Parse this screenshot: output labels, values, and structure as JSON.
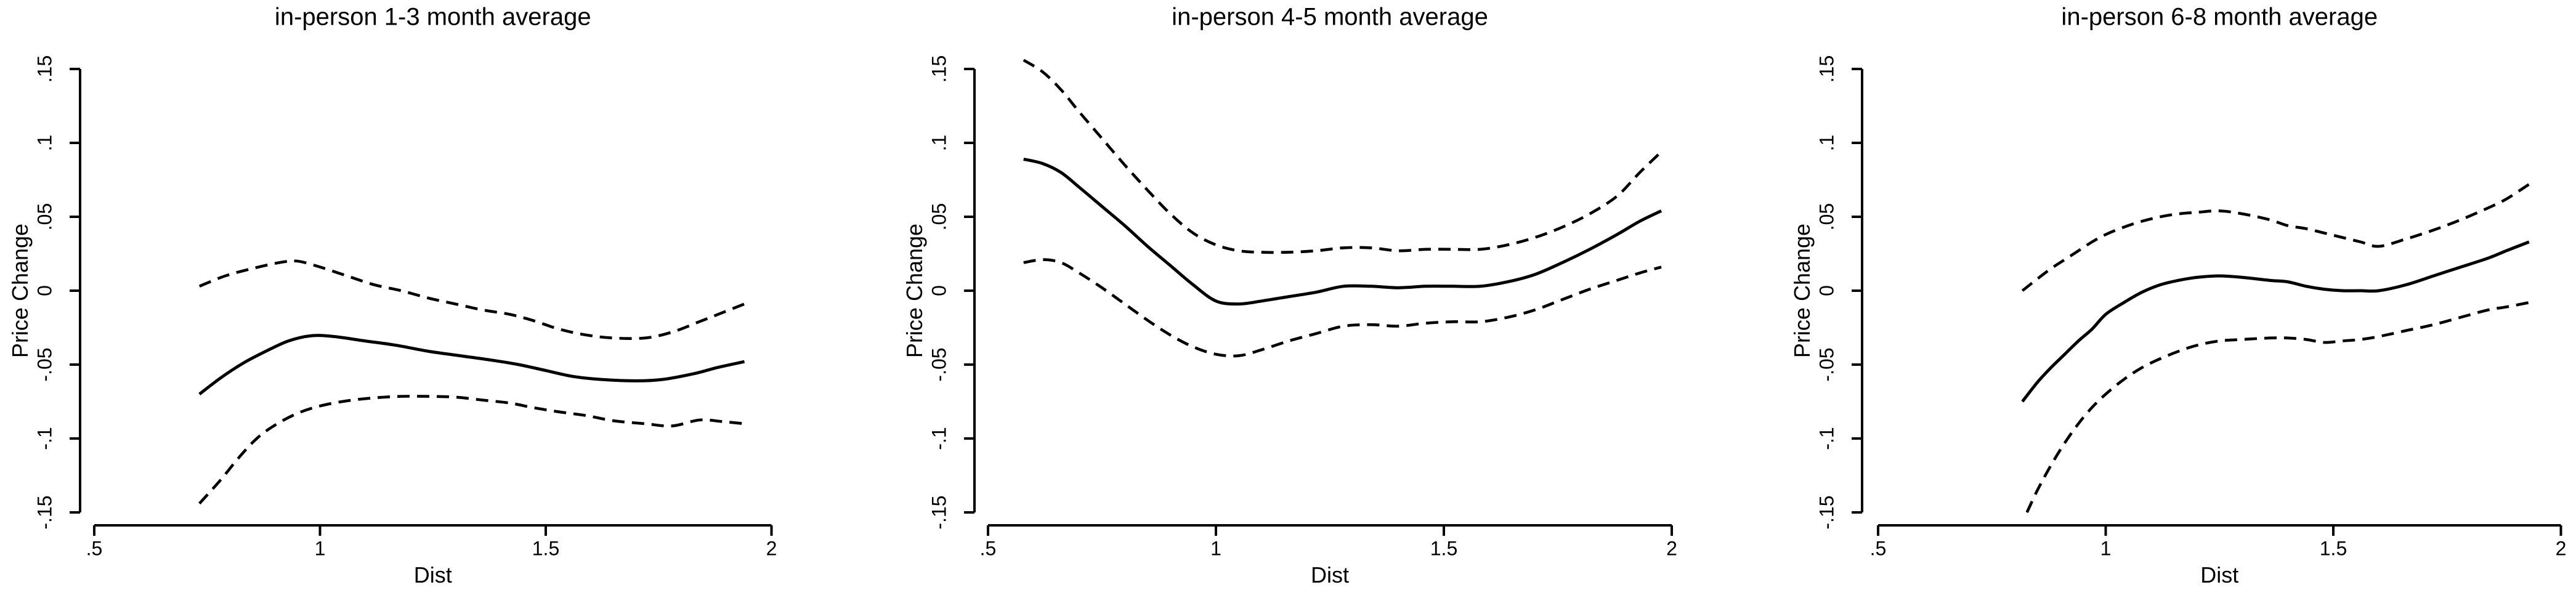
{
  "figure": {
    "background": "#ffffff",
    "line_color": "#000000"
  },
  "chart_data": [
    {
      "type": "line",
      "title": "in-person 1-3 month average",
      "xlabel": "Dist",
      "ylabel": "Price Change",
      "xlim": [
        0.5,
        2
      ],
      "ylim": [
        -0.15,
        0.15
      ],
      "x_ticks": [
        0.5,
        1,
        1.5,
        2
      ],
      "x_tick_labels": [
        ".5",
        "1",
        "1.5",
        "2"
      ],
      "y_ticks": [
        0.15,
        0.1,
        0.05,
        0,
        -0.05,
        -0.1,
        -0.15
      ],
      "y_tick_labels": [
        ".15",
        ".1",
        ".05",
        "0",
        "-.05",
        "-.1",
        "-.15"
      ],
      "grid": false,
      "legend": "none",
      "series": [
        {
          "name": "estimate",
          "style": "solid",
          "points": [
            [
              0.733,
              -0.07
            ],
            [
              0.78,
              -0.059
            ],
            [
              0.83,
              -0.049
            ],
            [
              0.88,
              -0.041
            ],
            [
              0.93,
              -0.034
            ],
            [
              0.98,
              -0.0305
            ],
            [
              1.03,
              -0.031
            ],
            [
              1.1,
              -0.034
            ],
            [
              1.17,
              -0.037
            ],
            [
              1.24,
              -0.041
            ],
            [
              1.31,
              -0.044
            ],
            [
              1.38,
              -0.047
            ],
            [
              1.44,
              -0.05
            ],
            [
              1.5,
              -0.054
            ],
            [
              1.56,
              -0.058
            ],
            [
              1.62,
              -0.06
            ],
            [
              1.7,
              -0.061
            ],
            [
              1.76,
              -0.06
            ],
            [
              1.83,
              -0.056
            ],
            [
              1.88,
              -0.052
            ],
            [
              1.94,
              -0.048
            ]
          ]
        },
        {
          "name": "upper-band",
          "style": "dashed",
          "points": [
            [
              0.733,
              0.003
            ],
            [
              0.79,
              0.01
            ],
            [
              0.85,
              0.015
            ],
            [
              0.91,
              0.019
            ],
            [
              0.95,
              0.02
            ],
            [
              1.0,
              0.016
            ],
            [
              1.06,
              0.01
            ],
            [
              1.12,
              0.004
            ],
            [
              1.18,
              0.0
            ],
            [
              1.24,
              -0.005
            ],
            [
              1.3,
              -0.009
            ],
            [
              1.36,
              -0.013
            ],
            [
              1.42,
              -0.016
            ],
            [
              1.47,
              -0.02
            ],
            [
              1.53,
              -0.026
            ],
            [
              1.59,
              -0.03
            ],
            [
              1.65,
              -0.032
            ],
            [
              1.72,
              -0.032
            ],
            [
              1.78,
              -0.028
            ],
            [
              1.84,
              -0.021
            ],
            [
              1.89,
              -0.015
            ],
            [
              1.94,
              -0.009
            ]
          ]
        },
        {
          "name": "lower-band",
          "style": "dashed",
          "points": [
            [
              0.733,
              -0.144
            ],
            [
              0.78,
              -0.128
            ],
            [
              0.82,
              -0.113
            ],
            [
              0.86,
              -0.1
            ],
            [
              0.9,
              -0.091
            ],
            [
              0.95,
              -0.083
            ],
            [
              1.0,
              -0.078
            ],
            [
              1.06,
              -0.0745
            ],
            [
              1.12,
              -0.0725
            ],
            [
              1.18,
              -0.0715
            ],
            [
              1.24,
              -0.0715
            ],
            [
              1.3,
              -0.072
            ],
            [
              1.36,
              -0.074
            ],
            [
              1.42,
              -0.076
            ],
            [
              1.47,
              -0.079
            ],
            [
              1.53,
              -0.082
            ],
            [
              1.59,
              -0.0845
            ],
            [
              1.65,
              -0.088
            ],
            [
              1.72,
              -0.09
            ],
            [
              1.78,
              -0.0915
            ],
            [
              1.84,
              -0.0875
            ],
            [
              1.89,
              -0.0885
            ],
            [
              1.94,
              -0.09
            ]
          ]
        }
      ]
    },
    {
      "type": "line",
      "title": "in-person 4-5 month average",
      "xlabel": "Dist",
      "ylabel": "Price Change",
      "xlim": [
        0.5,
        2
      ],
      "ylim": [
        -0.15,
        0.15
      ],
      "x_ticks": [
        0.5,
        1,
        1.5,
        2
      ],
      "x_tick_labels": [
        ".5",
        "1",
        "1.5",
        "2"
      ],
      "y_ticks": [
        0.15,
        0.1,
        0.05,
        0,
        -0.05,
        -0.1,
        -0.15
      ],
      "y_tick_labels": [
        ".15",
        ".1",
        ".05",
        "0",
        "-.05",
        "-.1",
        "-.15"
      ],
      "grid": false,
      "legend": "none",
      "series": [
        {
          "name": "estimate",
          "style": "solid",
          "points": [
            [
              0.578,
              0.089
            ],
            [
              0.62,
              0.086
            ],
            [
              0.66,
              0.08
            ],
            [
              0.7,
              0.07
            ],
            [
              0.75,
              0.057
            ],
            [
              0.8,
              0.044
            ],
            [
              0.85,
              0.03
            ],
            [
              0.9,
              0.017
            ],
            [
              0.95,
              0.004
            ],
            [
              1.0,
              -0.007
            ],
            [
              1.05,
              -0.009
            ],
            [
              1.1,
              -0.007
            ],
            [
              1.16,
              -0.004
            ],
            [
              1.22,
              -0.001
            ],
            [
              1.28,
              0.003
            ],
            [
              1.34,
              0.003
            ],
            [
              1.4,
              0.002
            ],
            [
              1.46,
              0.003
            ],
            [
              1.52,
              0.003
            ],
            [
              1.58,
              0.003
            ],
            [
              1.64,
              0.006
            ],
            [
              1.7,
              0.011
            ],
            [
              1.76,
              0.019
            ],
            [
              1.82,
              0.028
            ],
            [
              1.88,
              0.038
            ],
            [
              1.93,
              0.047
            ],
            [
              1.977,
              0.054
            ]
          ]
        },
        {
          "name": "upper-band",
          "style": "dashed",
          "points": [
            [
              0.578,
              0.156
            ],
            [
              0.62,
              0.148
            ],
            [
              0.66,
              0.136
            ],
            [
              0.7,
              0.121
            ],
            [
              0.75,
              0.103
            ],
            [
              0.8,
              0.085
            ],
            [
              0.85,
              0.068
            ],
            [
              0.9,
              0.052
            ],
            [
              0.95,
              0.039
            ],
            [
              1.0,
              0.031
            ],
            [
              1.05,
              0.027
            ],
            [
              1.1,
              0.026
            ],
            [
              1.16,
              0.026
            ],
            [
              1.22,
              0.027
            ],
            [
              1.28,
              0.029
            ],
            [
              1.34,
              0.029
            ],
            [
              1.4,
              0.027
            ],
            [
              1.46,
              0.028
            ],
            [
              1.52,
              0.028
            ],
            [
              1.58,
              0.028
            ],
            [
              1.64,
              0.031
            ],
            [
              1.7,
              0.036
            ],
            [
              1.76,
              0.043
            ],
            [
              1.82,
              0.052
            ],
            [
              1.88,
              0.064
            ],
            [
              1.93,
              0.08
            ],
            [
              1.977,
              0.094
            ]
          ]
        },
        {
          "name": "lower-band",
          "style": "dashed",
          "points": [
            [
              0.578,
              0.019
            ],
            [
              0.62,
              0.021
            ],
            [
              0.66,
              0.019
            ],
            [
              0.7,
              0.012
            ],
            [
              0.75,
              0.002
            ],
            [
              0.8,
              -0.009
            ],
            [
              0.85,
              -0.02
            ],
            [
              0.9,
              -0.03
            ],
            [
              0.95,
              -0.038
            ],
            [
              1.0,
              -0.043
            ],
            [
              1.05,
              -0.044
            ],
            [
              1.1,
              -0.04
            ],
            [
              1.16,
              -0.034
            ],
            [
              1.22,
              -0.029
            ],
            [
              1.28,
              -0.024
            ],
            [
              1.34,
              -0.023
            ],
            [
              1.4,
              -0.024
            ],
            [
              1.46,
              -0.022
            ],
            [
              1.52,
              -0.021
            ],
            [
              1.58,
              -0.021
            ],
            [
              1.64,
              -0.018
            ],
            [
              1.7,
              -0.013
            ],
            [
              1.76,
              -0.006
            ],
            [
              1.82,
              0.001
            ],
            [
              1.88,
              0.007
            ],
            [
              1.93,
              0.012
            ],
            [
              1.977,
              0.016
            ]
          ]
        }
      ]
    },
    {
      "type": "line",
      "title": "in-person 6-8 month average",
      "xlabel": "Dist",
      "ylabel": "Price Change",
      "xlim": [
        0.5,
        2
      ],
      "ylim": [
        -0.15,
        0.15
      ],
      "x_ticks": [
        0.5,
        1,
        1.5,
        2
      ],
      "x_tick_labels": [
        ".5",
        "1",
        "1.5",
        "2"
      ],
      "y_ticks": [
        0.15,
        0.1,
        0.05,
        0,
        -0.05,
        -0.1,
        -0.15
      ],
      "y_tick_labels": [
        ".15",
        ".1",
        ".05",
        "0",
        "-.05",
        "-.1",
        "-.15"
      ],
      "grid": false,
      "legend": "none",
      "series": [
        {
          "name": "estimate",
          "style": "solid",
          "points": [
            [
              0.817,
              -0.075
            ],
            [
              0.85,
              -0.062
            ],
            [
              0.88,
              -0.052
            ],
            [
              0.91,
              -0.043
            ],
            [
              0.94,
              -0.034
            ],
            [
              0.97,
              -0.026
            ],
            [
              1.0,
              -0.016
            ],
            [
              1.04,
              -0.008
            ],
            [
              1.08,
              -0.001
            ],
            [
              1.12,
              0.004
            ],
            [
              1.16,
              0.007
            ],
            [
              1.2,
              0.009
            ],
            [
              1.25,
              0.01
            ],
            [
              1.3,
              0.009
            ],
            [
              1.36,
              0.007
            ],
            [
              1.4,
              0.006
            ],
            [
              1.44,
              0.003
            ],
            [
              1.48,
              0.001
            ],
            [
              1.52,
              0.0
            ],
            [
              1.56,
              0.0
            ],
            [
              1.6,
              0.0
            ],
            [
              1.66,
              0.004
            ],
            [
              1.72,
              0.01
            ],
            [
              1.78,
              0.016
            ],
            [
              1.84,
              0.022
            ],
            [
              1.88,
              0.027
            ],
            [
              1.93,
              0.033
            ]
          ]
        },
        {
          "name": "upper-band",
          "style": "dashed",
          "points": [
            [
              0.817,
              0.0
            ],
            [
              0.85,
              0.008
            ],
            [
              0.88,
              0.015
            ],
            [
              0.91,
              0.021
            ],
            [
              0.94,
              0.027
            ],
            [
              0.97,
              0.033
            ],
            [
              1.0,
              0.038
            ],
            [
              1.04,
              0.043
            ],
            [
              1.08,
              0.047
            ],
            [
              1.12,
              0.05
            ],
            [
              1.16,
              0.052
            ],
            [
              1.2,
              0.053
            ],
            [
              1.25,
              0.054
            ],
            [
              1.3,
              0.052
            ],
            [
              1.36,
              0.048
            ],
            [
              1.4,
              0.044
            ],
            [
              1.44,
              0.042
            ],
            [
              1.48,
              0.039
            ],
            [
              1.52,
              0.036
            ],
            [
              1.56,
              0.033
            ],
            [
              1.6,
              0.03
            ],
            [
              1.66,
              0.035
            ],
            [
              1.72,
              0.041
            ],
            [
              1.78,
              0.048
            ],
            [
              1.84,
              0.056
            ],
            [
              1.88,
              0.062
            ],
            [
              1.93,
              0.072
            ]
          ]
        },
        {
          "name": "lower-band",
          "style": "dashed",
          "points": [
            [
              0.827,
              -0.15
            ],
            [
              0.85,
              -0.135
            ],
            [
              0.88,
              -0.118
            ],
            [
              0.91,
              -0.103
            ],
            [
              0.94,
              -0.09
            ],
            [
              0.97,
              -0.079
            ],
            [
              1.0,
              -0.07
            ],
            [
              1.04,
              -0.06
            ],
            [
              1.08,
              -0.052
            ],
            [
              1.12,
              -0.046
            ],
            [
              1.16,
              -0.041
            ],
            [
              1.2,
              -0.037
            ],
            [
              1.25,
              -0.034
            ],
            [
              1.3,
              -0.033
            ],
            [
              1.36,
              -0.032
            ],
            [
              1.4,
              -0.032
            ],
            [
              1.44,
              -0.033
            ],
            [
              1.48,
              -0.035
            ],
            [
              1.52,
              -0.034
            ],
            [
              1.56,
              -0.033
            ],
            [
              1.6,
              -0.031
            ],
            [
              1.66,
              -0.027
            ],
            [
              1.72,
              -0.023
            ],
            [
              1.78,
              -0.018
            ],
            [
              1.84,
              -0.013
            ],
            [
              1.88,
              -0.011
            ],
            [
              1.93,
              -0.008
            ]
          ]
        }
      ]
    }
  ]
}
